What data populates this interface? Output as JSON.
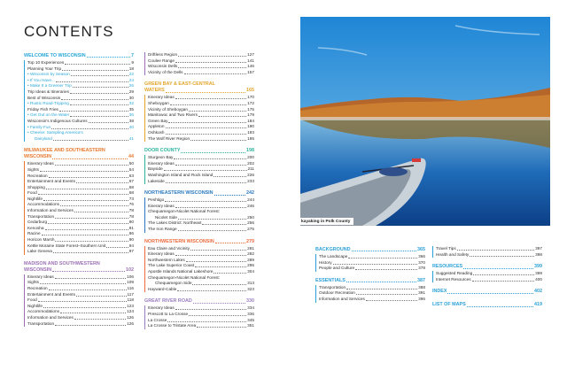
{
  "page_title": "CONTENTS",
  "photo": {
    "caption": "kayaking in Polk County"
  },
  "columns": [
    [
      {
        "title": "WELCOME TO WISCONSIN",
        "page": "7",
        "color": "#2aa7d8",
        "items": [
          {
            "label": "Top 10 Experiences",
            "page": "9"
          },
          {
            "label": "Planning Your Trip",
            "page": "18"
          },
          {
            "label": "• Wisconsin by Season",
            "page": "22",
            "sub": true
          },
          {
            "label": "• If You Have...",
            "page": "24",
            "sub": true
          },
          {
            "label": "• Make It a Greener Trip",
            "page": "26",
            "sub": true
          },
          {
            "label": "Trip Ideas & Itineraries",
            "page": "29"
          },
          {
            "label": "Best of Wisconsin",
            "page": "30"
          },
          {
            "label": "• Rustic Road-Tripping",
            "page": "32",
            "sub": true
          },
          {
            "label": "Friday Fish Fries",
            "page": "35"
          },
          {
            "label": "• Get Out on the Water",
            "page": "36",
            "sub": true
          },
          {
            "label": "Wisconsin's Indigenous Cultures",
            "page": "38"
          },
          {
            "label": "• Family Fun",
            "page": "40",
            "sub": true
          },
          {
            "label": "• Cheese: Sampling America's",
            "label2": "Dairyland",
            "page": "41",
            "sub": true
          }
        ]
      },
      {
        "title": "MILWAUKEE AND SOUTHEASTERN",
        "title2": "WISCONSIN",
        "page": "44",
        "color": "#e8782e",
        "items": [
          {
            "label": "Itinerary Ideas",
            "page": "50"
          },
          {
            "label": "Sights",
            "page": "54"
          },
          {
            "label": "Recreation",
            "page": "63"
          },
          {
            "label": "Entertainment and Events",
            "page": "67"
          },
          {
            "label": "Shopping",
            "page": "68"
          },
          {
            "label": "Food",
            "page": "68"
          },
          {
            "label": "Nightlife",
            "page": "73"
          },
          {
            "label": "Accommodations",
            "page": "76"
          },
          {
            "label": "Information and Services",
            "page": "78"
          },
          {
            "label": "Transportation",
            "page": "78"
          },
          {
            "label": "Cedarburg",
            "page": "80"
          },
          {
            "label": "Kenosha",
            "page": "81"
          },
          {
            "label": "Racine",
            "page": "86"
          },
          {
            "label": "Horicon Marsh",
            "page": "90"
          },
          {
            "label": "Kettle Moraine State Forest–Southern Unit",
            "page": "94"
          },
          {
            "label": "Lake Geneva",
            "page": "97"
          }
        ]
      },
      {
        "title": "MADISON AND SOUTHWESTERN",
        "title2": "WISCONSIN",
        "page": "102",
        "color": "#9b6fb5",
        "items": [
          {
            "label": "Itinerary Ideas",
            "page": "106"
          },
          {
            "label": "Sights",
            "page": "109"
          },
          {
            "label": "Recreation",
            "page": "116"
          },
          {
            "label": "Entertainment and Events",
            "page": "117"
          },
          {
            "label": "Food",
            "page": "118"
          },
          {
            "label": "Nightlife",
            "page": "123"
          },
          {
            "label": "Accommodations",
            "page": "124"
          },
          {
            "label": "Information and Services",
            "page": "126"
          },
          {
            "label": "Transportation",
            "page": "126"
          }
        ]
      }
    ],
    [
      {
        "color": "#9b6fb5",
        "items": [
          {
            "label": "Driftless Region",
            "page": "127"
          },
          {
            "label": "Coulee Range",
            "page": "141"
          },
          {
            "label": "Wisconsin Dells",
            "page": "146"
          },
          {
            "label": "Vicinity of the Dells",
            "page": "157"
          }
        ]
      },
      {
        "title": "GREEN BAY & EAST-CENTRAL",
        "title2": "WATERS",
        "page": "165",
        "color": "#e3a52b",
        "items": [
          {
            "label": "Itinerary Ideas",
            "page": "170"
          },
          {
            "label": "Sheboygan",
            "page": "172"
          },
          {
            "label": "Vicinity of Sheboygan",
            "page": "175"
          },
          {
            "label": "Manitowoc and Two Rivers",
            "page": "179"
          },
          {
            "label": "Green Bay",
            "page": "184"
          },
          {
            "label": "Appleton",
            "page": "190"
          },
          {
            "label": "Oshkosh",
            "page": "193"
          },
          {
            "label": "The Wolf River Region",
            "page": "195"
          }
        ]
      },
      {
        "title": "DOOR COUNTY",
        "page": "198",
        "color": "#2bb39e",
        "items": [
          {
            "label": "Sturgeon Bay",
            "page": "200"
          },
          {
            "label": "Itinerary Ideas",
            "page": "202"
          },
          {
            "label": "Bayside",
            "page": "211"
          },
          {
            "label": "Washington Island and Rock Island",
            "page": "226"
          },
          {
            "label": "Lakeside",
            "page": "233"
          }
        ]
      },
      {
        "title": "NORTHEASTERN WISCONSIN",
        "page": "242",
        "color": "#2a78bf",
        "items": [
          {
            "label": "Peshtigo",
            "page": "244"
          },
          {
            "label": "Itinerary Ideas",
            "page": "246"
          },
          {
            "label": "Chequamegon-Nicolet National Forest:",
            "label2": "Nicolet Side",
            "page": "250"
          },
          {
            "label": "The Lakes District: Northeast",
            "page": "256"
          },
          {
            "label": "The Iron Range",
            "page": "275"
          }
        ]
      },
      {
        "title": "NORTHWESTERN WISCONSIN",
        "page": "279",
        "color": "#ee6b3b",
        "items": [
          {
            "label": "Eau Claire and Vicinity",
            "page": "281"
          },
          {
            "label": "Itinerary Ideas",
            "page": "282"
          },
          {
            "label": "Northwestern Lakes",
            "page": "289"
          },
          {
            "label": "The Lake Superior Coast",
            "page": "295"
          },
          {
            "label": "Apostle Islands National Lakeshore",
            "page": "304"
          },
          {
            "label": "Chequamegon-Nicolet National Forest:",
            "label2": "Chequamegon Side",
            "page": "313"
          },
          {
            "label": "Hayward-Cable",
            "page": "323"
          }
        ]
      },
      {
        "title": "GREAT RIVER ROAD",
        "page": "330",
        "color": "#9a7cc0",
        "items": [
          {
            "label": "Itinerary Ideas",
            "page": "334"
          },
          {
            "label": "Prescott to La Crosse",
            "page": "336"
          },
          {
            "label": "La Crosse",
            "page": "345"
          },
          {
            "label": "La Crosse to Tristate Area",
            "page": "351"
          }
        ]
      }
    ],
    [
      {
        "title": "BACKGROUND",
        "page": "365",
        "color": "#2aa0d8",
        "items": [
          {
            "label": "The Landscape",
            "page": "366"
          },
          {
            "label": "History",
            "page": "370"
          },
          {
            "label": "People and Culture",
            "page": "378"
          }
        ]
      },
      {
        "title": "ESSENTIALS",
        "page": "387",
        "color": "#2aa0d8",
        "items": [
          {
            "label": "Transportation",
            "page": "388"
          },
          {
            "label": "Outdoor Recreation",
            "page": "391"
          },
          {
            "label": "Information and Services",
            "page": "396"
          }
        ]
      }
    ],
    [
      {
        "color": "#2aa0d8",
        "items": [
          {
            "label": "Travel Tips",
            "page": "397"
          },
          {
            "label": "Health and Safety",
            "page": "398"
          }
        ]
      },
      {
        "title": "RESOURCES",
        "page": "399",
        "color": "#2aa0d8",
        "items": [
          {
            "label": "Suggested Reading",
            "page": "399"
          },
          {
            "label": "Internet Resources",
            "page": "400"
          }
        ]
      },
      {
        "title": "INDEX",
        "page": "402",
        "color": "#2aa0d8",
        "items": []
      },
      {
        "title": "LIST OF MAPS",
        "page": "419",
        "color": "#2aa0d8",
        "items": []
      }
    ]
  ]
}
